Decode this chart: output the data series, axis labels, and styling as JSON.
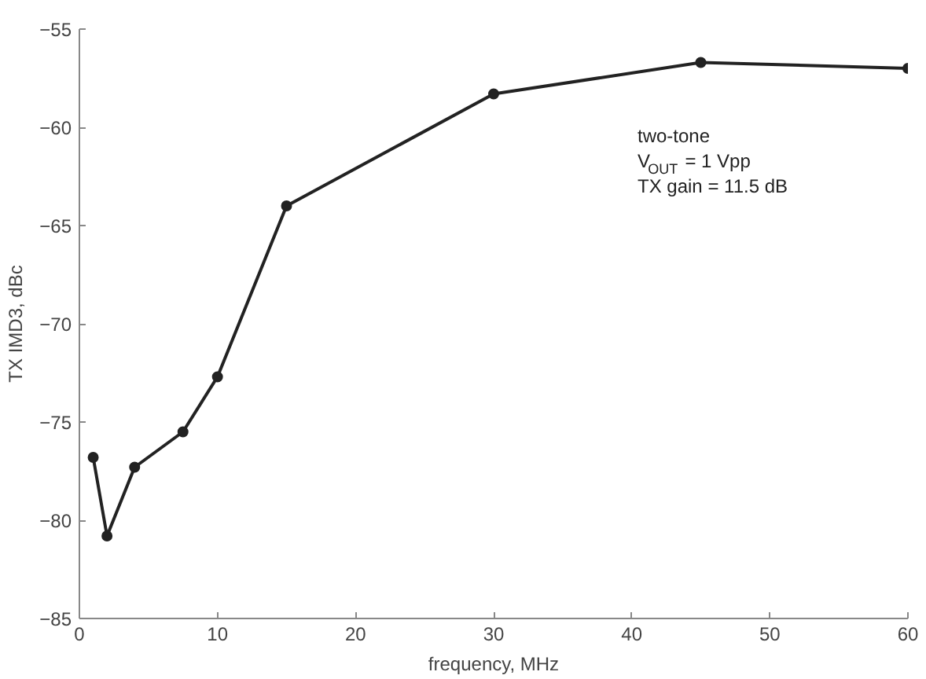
{
  "chart_data": {
    "type": "line",
    "xlabel": "frequency, MHz",
    "ylabel": "TX IMD3, dBc",
    "x": [
      1,
      2,
      4,
      7.5,
      10,
      15,
      30,
      45,
      60
    ],
    "series": [
      {
        "color": "#222222",
        "values": [
          -76.8,
          -80.8,
          -77.3,
          -75.5,
          -72.7,
          -64,
          -58.3,
          -56.7,
          -57
        ]
      }
    ],
    "xlim": [
      0,
      60
    ],
    "ylim": [
      -85,
      -55
    ],
    "xticks": [
      0,
      10,
      20,
      30,
      40,
      50,
      60
    ],
    "yticks": [
      -85,
      -80,
      -75,
      -70,
      -65,
      -60,
      -55
    ],
    "marker": "circle",
    "line_style": "solid",
    "annotations": [
      "two-tone",
      "V$_{OUT}$ = 1 Vpp",
      "TX gain = 11.5 dB"
    ]
  }
}
